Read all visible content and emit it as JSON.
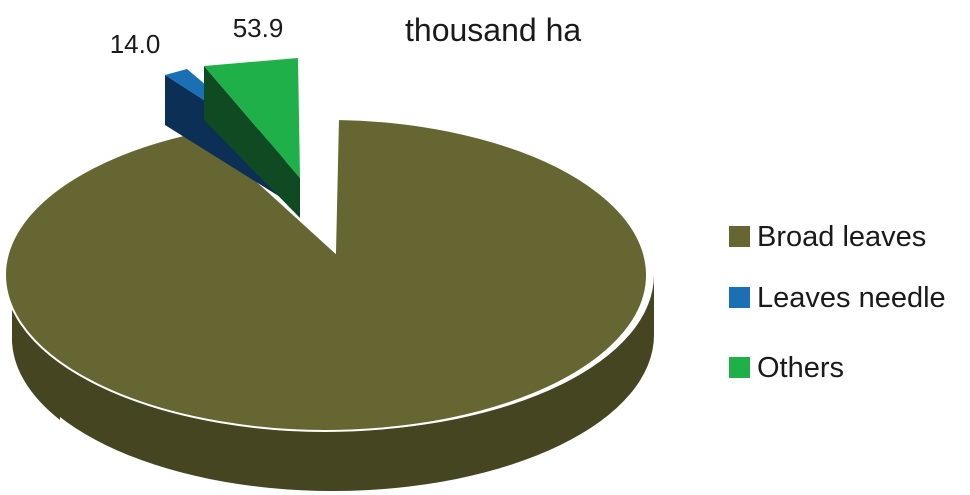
{
  "chart_data": {
    "type": "pie",
    "title": "",
    "unit_label": "thousand ha",
    "slices": [
      {
        "name": "Broad leaves",
        "value": null,
        "color": "#666633",
        "side_color": "#454522"
      },
      {
        "name": "Leaves needle",
        "value": 14.0,
        "value_label": "14.0",
        "color": "#1a6fb5",
        "side_color": "#0b2f55"
      },
      {
        "name": "Others",
        "value": 53.9,
        "value_label": "53.9",
        "color": "#1fb04a",
        "side_color": "#0f4a22"
      }
    ],
    "legend_position": "right",
    "exploded": [
      "Leaves needle",
      "Others"
    ],
    "style": "3d"
  }
}
